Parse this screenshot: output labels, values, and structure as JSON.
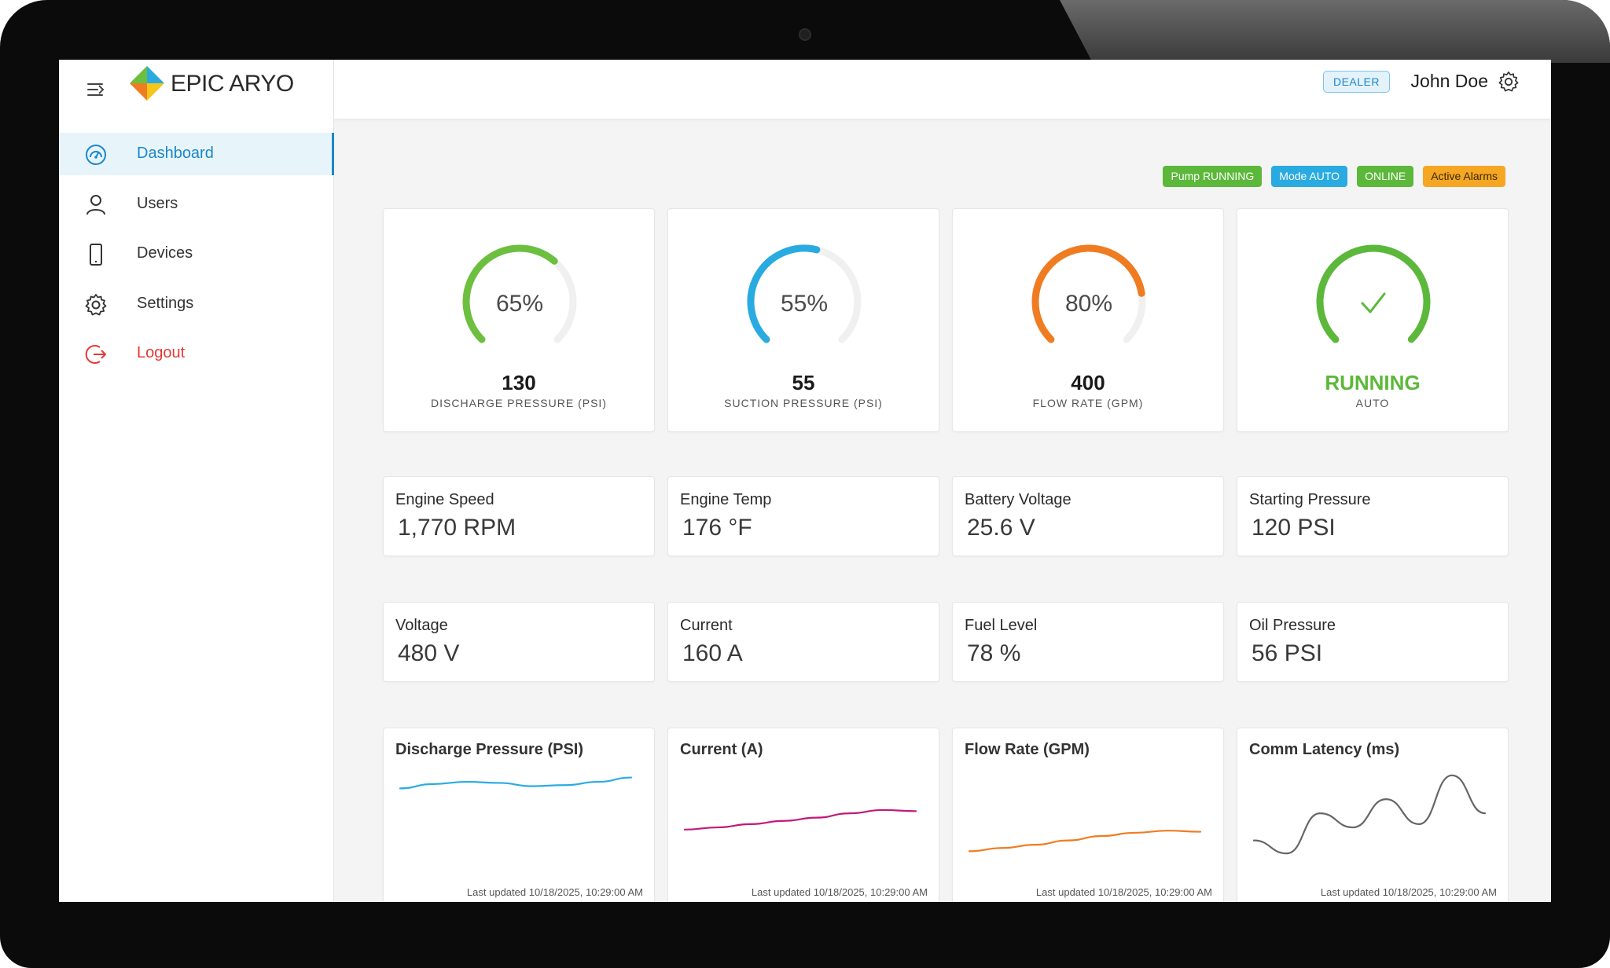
{
  "brand": {
    "name": "EPIC ARYO"
  },
  "sidebar": {
    "items": [
      {
        "label": "Dashboard",
        "icon": "dashboard-icon",
        "active": true
      },
      {
        "label": "Users",
        "icon": "user-icon"
      },
      {
        "label": "Devices",
        "icon": "device-icon"
      },
      {
        "label": "Settings",
        "icon": "gear-icon"
      },
      {
        "label": "Logout",
        "icon": "logout-icon"
      }
    ]
  },
  "header": {
    "role_badge": "DEALER",
    "user_name": "John Doe"
  },
  "status_pills": [
    {
      "label": "Pump RUNNING",
      "color": "#5cb83a"
    },
    {
      "label": "Mode AUTO",
      "color": "#29abe2"
    },
    {
      "label": "ONLINE",
      "color": "#5cb83a"
    },
    {
      "label": "Active Alarms",
      "color": "#f5a623"
    }
  ],
  "gauges": [
    {
      "percent_label": "65%",
      "percent": 65,
      "value": "130",
      "label": "DISCHARGE PRESSURE (PSI)",
      "color": "#6cbf3f"
    },
    {
      "percent_label": "55%",
      "percent": 55,
      "value": "55",
      "label": "SUCTION PRESSURE (PSI)",
      "color": "#29abe2"
    },
    {
      "percent_label": "80%",
      "percent": 80,
      "value": "400",
      "label": "FLOW RATE (GPM)",
      "color": "#f07c22"
    },
    {
      "status": "RUNNING",
      "label": "AUTO",
      "percent": 100,
      "color": "#5cb83a"
    }
  ],
  "metrics_row1": [
    {
      "title": "Engine Speed",
      "value": "1,770 RPM"
    },
    {
      "title": "Engine Temp",
      "value": "176 °F"
    },
    {
      "title": "Battery Voltage",
      "value": "25.6 V"
    },
    {
      "title": "Starting Pressure",
      "value": "120 PSI"
    }
  ],
  "metrics_row2": [
    {
      "title": "Voltage",
      "value": "480 V"
    },
    {
      "title": "Current",
      "value": "160 A"
    },
    {
      "title": "Fuel Level",
      "value": "78 %"
    },
    {
      "title": "Oil Pressure",
      "value": "56 PSI"
    }
  ],
  "charts": [
    {
      "title": "Discharge Pressure (PSI)",
      "updated": "Last updated 10/18/2025, 10:29:00 AM",
      "color": "#29abe2",
      "values": [
        0.78,
        0.82,
        0.84,
        0.83,
        0.8,
        0.81,
        0.84,
        0.88
      ]
    },
    {
      "title": "Current (A)",
      "updated": "Last updated 10/18/2025, 10:29:00 AM",
      "color": "#c2197a",
      "values": [
        0.4,
        0.42,
        0.45,
        0.48,
        0.51,
        0.55,
        0.58,
        0.57
      ]
    },
    {
      "title": "Flow Rate (GPM)",
      "updated": "Last updated 10/18/2025, 10:29:00 AM",
      "color": "#f07c22",
      "values": [
        0.2,
        0.23,
        0.26,
        0.3,
        0.34,
        0.37,
        0.39,
        0.38
      ]
    },
    {
      "title": "Comm Latency (ms)",
      "updated": "Last updated 10/18/2025, 10:29:00 AM",
      "color": "#666666",
      "values": [
        0.3,
        0.18,
        0.55,
        0.42,
        0.68,
        0.45,
        0.9,
        0.55
      ]
    }
  ]
}
